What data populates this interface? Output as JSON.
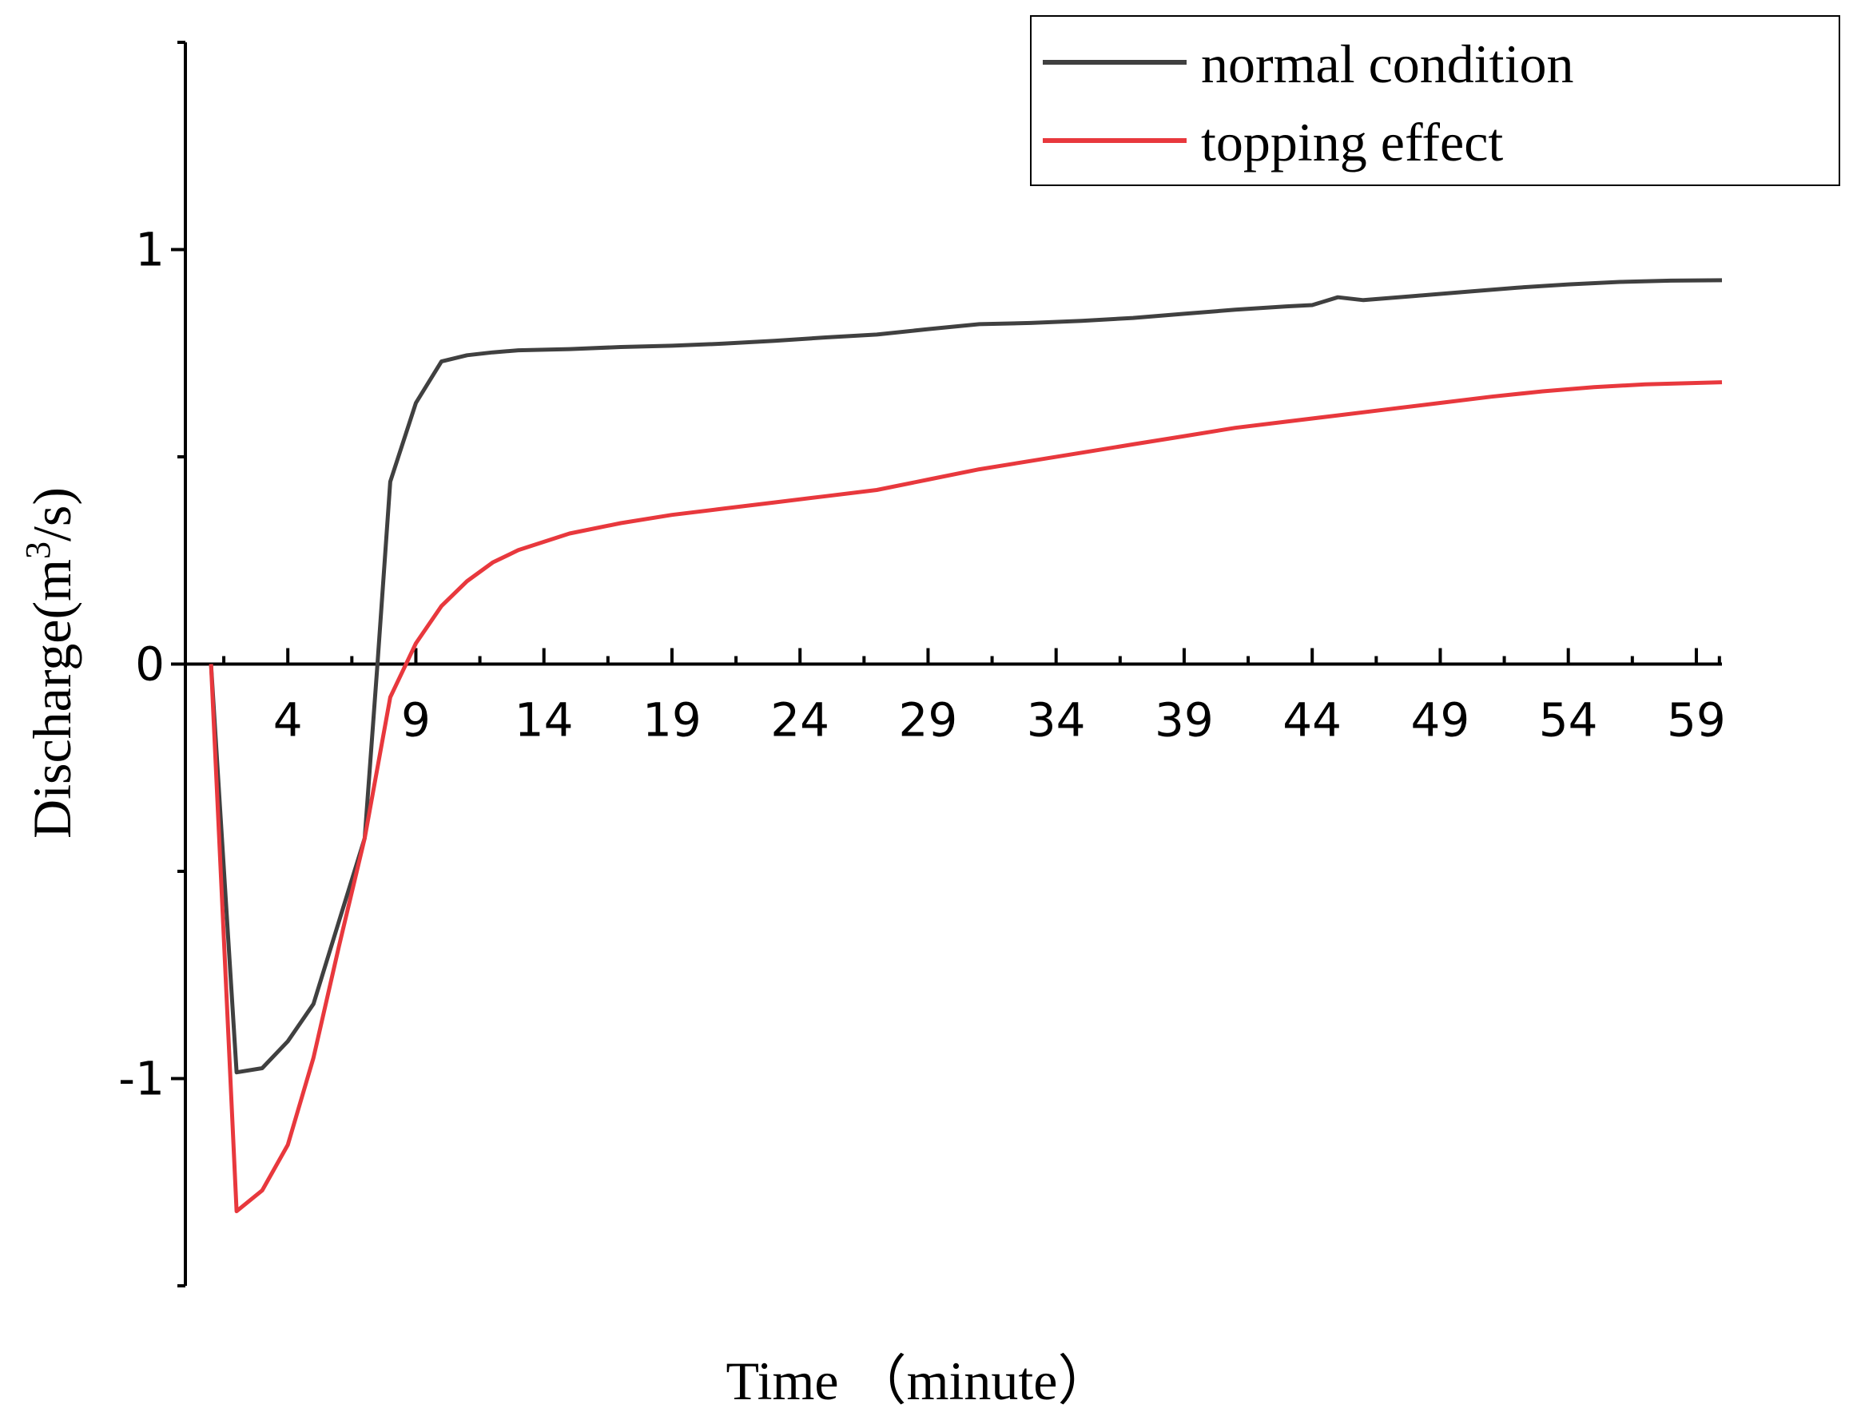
{
  "chart_data": {
    "type": "line",
    "title": "",
    "xlabel": "Time （minute）",
    "ylabel": "Discharge(m³/s)",
    "ylabel_parts": {
      "pre": "Discharge(m",
      "sup": "3",
      "post": "/s)"
    },
    "xlim": [
      0,
      60
    ],
    "ylim": [
      -1.5,
      1.5
    ],
    "x_ticks": [
      4,
      9,
      14,
      19,
      24,
      29,
      34,
      39,
      44,
      49,
      54,
      59
    ],
    "x_tick_labels": [
      "4",
      "9",
      "14",
      "19",
      "24",
      "29",
      "34",
      "39",
      "44",
      "49",
      "54",
      "59"
    ],
    "y_ticks_major": [
      1,
      0,
      -1
    ],
    "y_tick_labels": [
      "1",
      "0",
      "-1"
    ],
    "y_ticks_minor": [
      1.5,
      0.5,
      -0.5,
      -1.5
    ],
    "legend_position": "top-right",
    "grid": false,
    "series": [
      {
        "name": "normal condition",
        "color": "#404040",
        "points": [
          [
            1,
            0
          ],
          [
            2,
            -0.985
          ],
          [
            3,
            -0.975
          ],
          [
            4,
            -0.91
          ],
          [
            5,
            -0.82
          ],
          [
            6,
            -0.62
          ],
          [
            7,
            -0.42
          ],
          [
            7.5,
            0
          ],
          [
            8,
            0.44
          ],
          [
            9,
            0.63
          ],
          [
            10,
            0.73
          ],
          [
            11,
            0.745
          ],
          [
            12,
            0.752
          ],
          [
            13,
            0.757
          ],
          [
            15,
            0.76
          ],
          [
            17,
            0.765
          ],
          [
            19,
            0.768
          ],
          [
            21,
            0.773
          ],
          [
            23,
            0.78
          ],
          [
            25,
            0.788
          ],
          [
            27,
            0.795
          ],
          [
            29,
            0.808
          ],
          [
            31,
            0.82
          ],
          [
            33,
            0.823
          ],
          [
            35,
            0.828
          ],
          [
            37,
            0.835
          ],
          [
            39,
            0.845
          ],
          [
            41,
            0.855
          ],
          [
            43,
            0.863
          ],
          [
            44,
            0.866
          ],
          [
            45,
            0.885
          ],
          [
            46,
            0.878
          ],
          [
            48,
            0.888
          ],
          [
            50,
            0.898
          ],
          [
            52,
            0.908
          ],
          [
            54,
            0.916
          ],
          [
            56,
            0.922
          ],
          [
            58,
            0.925
          ],
          [
            60,
            0.926
          ]
        ]
      },
      {
        "name": "topping effect",
        "color": "#e8383d",
        "points": [
          [
            1,
            0
          ],
          [
            2,
            -1.32
          ],
          [
            3,
            -1.27
          ],
          [
            4,
            -1.16
          ],
          [
            5,
            -0.95
          ],
          [
            6,
            -0.68
          ],
          [
            7,
            -0.42
          ],
          [
            8,
            -0.08
          ],
          [
            9,
            0.05
          ],
          [
            10,
            0.14
          ],
          [
            11,
            0.2
          ],
          [
            12,
            0.245
          ],
          [
            13,
            0.275
          ],
          [
            15,
            0.315
          ],
          [
            17,
            0.34
          ],
          [
            19,
            0.36
          ],
          [
            21,
            0.375
          ],
          [
            23,
            0.39
          ],
          [
            25,
            0.405
          ],
          [
            27,
            0.42
          ],
          [
            29,
            0.445
          ],
          [
            31,
            0.47
          ],
          [
            33,
            0.49
          ],
          [
            35,
            0.51
          ],
          [
            37,
            0.53
          ],
          [
            39,
            0.55
          ],
          [
            41,
            0.57
          ],
          [
            43,
            0.585
          ],
          [
            45,
            0.6
          ],
          [
            47,
            0.615
          ],
          [
            49,
            0.63
          ],
          [
            51,
            0.645
          ],
          [
            53,
            0.658
          ],
          [
            55,
            0.668
          ],
          [
            57,
            0.675
          ],
          [
            60,
            0.68
          ]
        ]
      }
    ]
  }
}
